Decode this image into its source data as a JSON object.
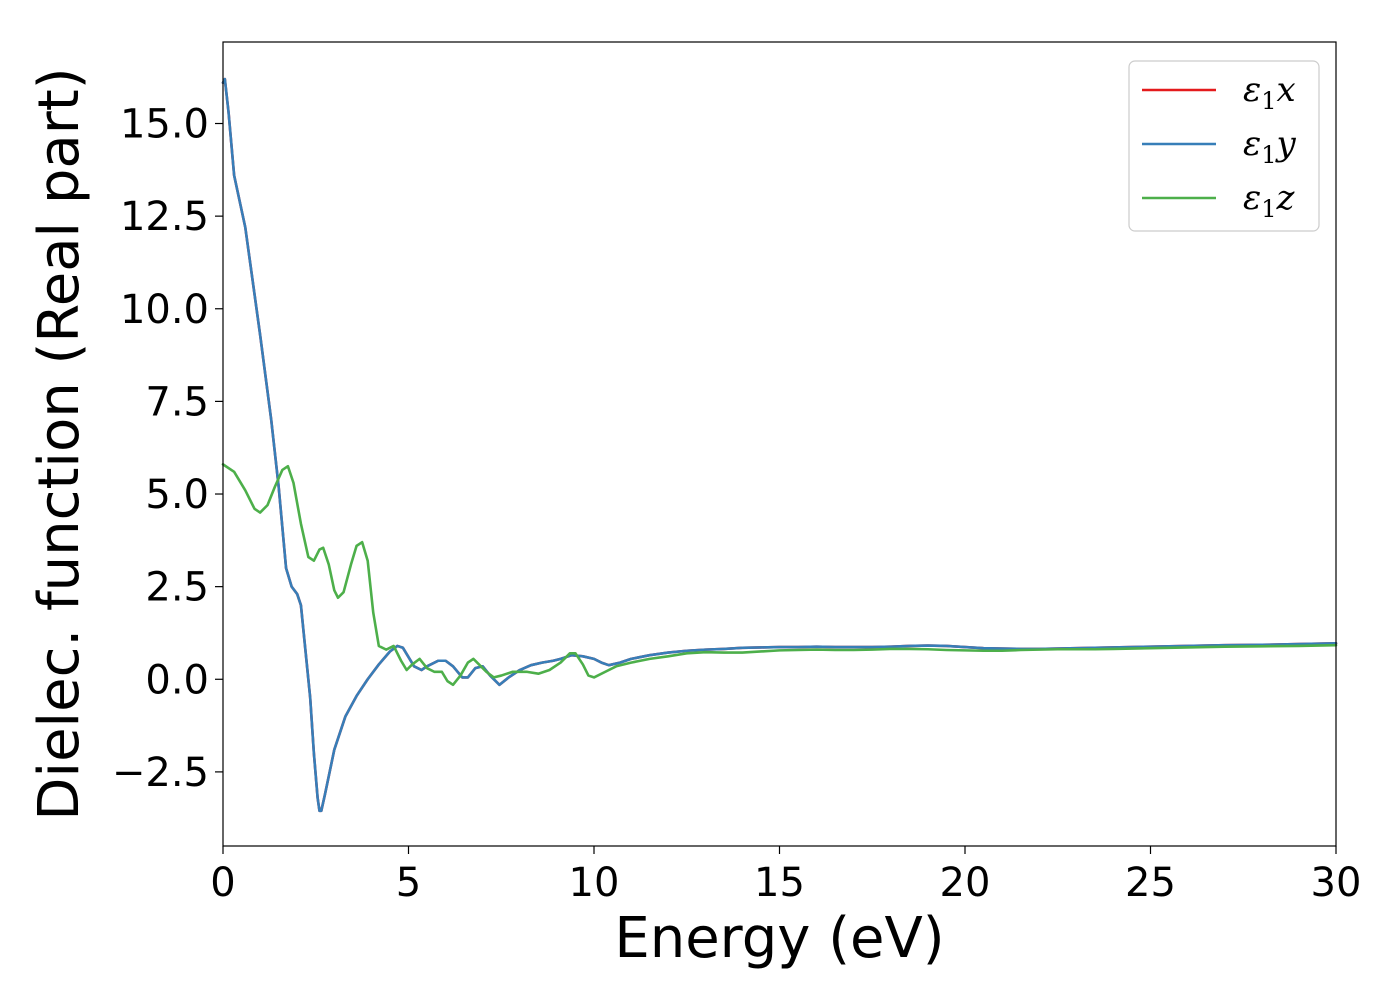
{
  "chart_data": {
    "type": "line",
    "title": "",
    "xlabel": "Energy (eV)",
    "ylabel": "Dielec. function (Real part)",
    "xlim": [
      0,
      30
    ],
    "ylim": [
      -4.5,
      17.2
    ],
    "xticks": [
      0,
      5,
      10,
      15,
      20,
      25,
      30
    ],
    "xtick_labels": [
      "0",
      "5",
      "10",
      "15",
      "20",
      "25",
      "30"
    ],
    "yticks": [
      -2.5,
      0.0,
      2.5,
      5.0,
      7.5,
      10.0,
      12.5,
      15.0
    ],
    "ytick_labels": [
      "−2.5",
      "0.0",
      "2.5",
      "5.0",
      "7.5",
      "10.0",
      "12.5",
      "15.0"
    ],
    "grid": false,
    "legend": {
      "placement": "top-right",
      "entries": [
        {
          "symbol": "ε",
          "sub": "1",
          "suffix": "x"
        },
        {
          "symbol": "ε",
          "sub": "1",
          "suffix": "y"
        },
        {
          "symbol": "ε",
          "sub": "1",
          "suffix": "z"
        }
      ]
    },
    "series": [
      {
        "name": "ε1x",
        "color": "#e41a1c",
        "points": [
          [
            0,
            16.1
          ],
          [
            0.05,
            16.2
          ],
          [
            0.15,
            15.3
          ],
          [
            0.3,
            13.6
          ],
          [
            0.6,
            12.2
          ],
          [
            1.0,
            9.3
          ],
          [
            1.3,
            7.0
          ],
          [
            1.5,
            5.2
          ],
          [
            1.7,
            3.0
          ],
          [
            1.85,
            2.5
          ],
          [
            2.0,
            2.3
          ],
          [
            2.1,
            2.0
          ],
          [
            2.2,
            1.0
          ],
          [
            2.35,
            -0.5
          ],
          [
            2.45,
            -2.0
          ],
          [
            2.55,
            -3.2
          ],
          [
            2.6,
            -3.55
          ],
          [
            2.65,
            -3.55
          ],
          [
            2.75,
            -3.1
          ],
          [
            3.0,
            -1.9
          ],
          [
            3.3,
            -1.0
          ],
          [
            3.6,
            -0.45
          ],
          [
            3.9,
            0.0
          ],
          [
            4.2,
            0.4
          ],
          [
            4.5,
            0.75
          ],
          [
            4.7,
            0.9
          ],
          [
            4.85,
            0.85
          ],
          [
            5.0,
            0.6
          ],
          [
            5.15,
            0.35
          ],
          [
            5.35,
            0.25
          ],
          [
            5.5,
            0.35
          ],
          [
            5.8,
            0.5
          ],
          [
            6.0,
            0.5
          ],
          [
            6.2,
            0.35
          ],
          [
            6.45,
            0.05
          ],
          [
            6.6,
            0.05
          ],
          [
            6.8,
            0.3
          ],
          [
            7.0,
            0.35
          ],
          [
            7.2,
            0.1
          ],
          [
            7.45,
            -0.15
          ],
          [
            7.7,
            0.05
          ],
          [
            8.0,
            0.25
          ],
          [
            8.3,
            0.38
          ],
          [
            8.6,
            0.45
          ],
          [
            8.9,
            0.5
          ],
          [
            9.1,
            0.55
          ],
          [
            9.4,
            0.65
          ],
          [
            9.7,
            0.62
          ],
          [
            10.0,
            0.55
          ],
          [
            10.2,
            0.45
          ],
          [
            10.4,
            0.38
          ],
          [
            10.7,
            0.45
          ],
          [
            11.0,
            0.55
          ],
          [
            11.5,
            0.65
          ],
          [
            12.0,
            0.72
          ],
          [
            12.5,
            0.77
          ],
          [
            13.0,
            0.8
          ],
          [
            13.5,
            0.82
          ],
          [
            14.0,
            0.85
          ],
          [
            14.5,
            0.86
          ],
          [
            15.0,
            0.87
          ],
          [
            15.5,
            0.87
          ],
          [
            16.0,
            0.88
          ],
          [
            16.5,
            0.87
          ],
          [
            17.0,
            0.87
          ],
          [
            17.5,
            0.87
          ],
          [
            18.0,
            0.88
          ],
          [
            18.5,
            0.9
          ],
          [
            19.0,
            0.91
          ],
          [
            19.5,
            0.9
          ],
          [
            20.0,
            0.87
          ],
          [
            20.5,
            0.84
          ],
          [
            21.0,
            0.83
          ],
          [
            21.5,
            0.82
          ],
          [
            22.0,
            0.82
          ],
          [
            22.5,
            0.83
          ],
          [
            23.0,
            0.84
          ],
          [
            23.5,
            0.85
          ],
          [
            24.0,
            0.86
          ],
          [
            24.5,
            0.87
          ],
          [
            25.0,
            0.88
          ],
          [
            26.0,
            0.9
          ],
          [
            27.0,
            0.92
          ],
          [
            28.0,
            0.93
          ],
          [
            29.0,
            0.95
          ],
          [
            30.0,
            0.97
          ]
        ]
      },
      {
        "name": "ε1y",
        "color": "#377eb8",
        "points": [
          [
            0,
            16.1
          ],
          [
            0.05,
            16.2
          ],
          [
            0.15,
            15.3
          ],
          [
            0.3,
            13.6
          ],
          [
            0.6,
            12.2
          ],
          [
            1.0,
            9.3
          ],
          [
            1.3,
            7.0
          ],
          [
            1.5,
            5.2
          ],
          [
            1.7,
            3.0
          ],
          [
            1.85,
            2.5
          ],
          [
            2.0,
            2.3
          ],
          [
            2.1,
            2.0
          ],
          [
            2.2,
            1.0
          ],
          [
            2.35,
            -0.5
          ],
          [
            2.45,
            -2.0
          ],
          [
            2.55,
            -3.2
          ],
          [
            2.6,
            -3.55
          ],
          [
            2.65,
            -3.55
          ],
          [
            2.75,
            -3.1
          ],
          [
            3.0,
            -1.9
          ],
          [
            3.3,
            -1.0
          ],
          [
            3.6,
            -0.45
          ],
          [
            3.9,
            0.0
          ],
          [
            4.2,
            0.4
          ],
          [
            4.5,
            0.75
          ],
          [
            4.7,
            0.9
          ],
          [
            4.85,
            0.85
          ],
          [
            5.0,
            0.6
          ],
          [
            5.15,
            0.35
          ],
          [
            5.35,
            0.25
          ],
          [
            5.5,
            0.35
          ],
          [
            5.8,
            0.5
          ],
          [
            6.0,
            0.5
          ],
          [
            6.2,
            0.35
          ],
          [
            6.45,
            0.05
          ],
          [
            6.6,
            0.05
          ],
          [
            6.8,
            0.3
          ],
          [
            7.0,
            0.35
          ],
          [
            7.2,
            0.1
          ],
          [
            7.45,
            -0.15
          ],
          [
            7.7,
            0.05
          ],
          [
            8.0,
            0.25
          ],
          [
            8.3,
            0.38
          ],
          [
            8.6,
            0.45
          ],
          [
            8.9,
            0.5
          ],
          [
            9.1,
            0.55
          ],
          [
            9.4,
            0.65
          ],
          [
            9.7,
            0.62
          ],
          [
            10.0,
            0.55
          ],
          [
            10.2,
            0.45
          ],
          [
            10.4,
            0.38
          ],
          [
            10.7,
            0.45
          ],
          [
            11.0,
            0.55
          ],
          [
            11.5,
            0.65
          ],
          [
            12.0,
            0.72
          ],
          [
            12.5,
            0.77
          ],
          [
            13.0,
            0.8
          ],
          [
            13.5,
            0.82
          ],
          [
            14.0,
            0.85
          ],
          [
            14.5,
            0.86
          ],
          [
            15.0,
            0.87
          ],
          [
            15.5,
            0.87
          ],
          [
            16.0,
            0.88
          ],
          [
            16.5,
            0.87
          ],
          [
            17.0,
            0.87
          ],
          [
            17.5,
            0.87
          ],
          [
            18.0,
            0.88
          ],
          [
            18.5,
            0.9
          ],
          [
            19.0,
            0.91
          ],
          [
            19.5,
            0.9
          ],
          [
            20.0,
            0.87
          ],
          [
            20.5,
            0.84
          ],
          [
            21.0,
            0.83
          ],
          [
            21.5,
            0.82
          ],
          [
            22.0,
            0.82
          ],
          [
            22.5,
            0.83
          ],
          [
            23.0,
            0.84
          ],
          [
            23.5,
            0.85
          ],
          [
            24.0,
            0.86
          ],
          [
            24.5,
            0.87
          ],
          [
            25.0,
            0.88
          ],
          [
            26.0,
            0.9
          ],
          [
            27.0,
            0.92
          ],
          [
            28.0,
            0.93
          ],
          [
            29.0,
            0.95
          ],
          [
            30.0,
            0.97
          ]
        ]
      },
      {
        "name": "ε1z",
        "color": "#4daf4a",
        "points": [
          [
            0,
            5.8
          ],
          [
            0.3,
            5.6
          ],
          [
            0.6,
            5.1
          ],
          [
            0.85,
            4.6
          ],
          [
            1.0,
            4.5
          ],
          [
            1.2,
            4.7
          ],
          [
            1.4,
            5.2
          ],
          [
            1.6,
            5.65
          ],
          [
            1.75,
            5.75
          ],
          [
            1.9,
            5.3
          ],
          [
            2.1,
            4.2
          ],
          [
            2.3,
            3.3
          ],
          [
            2.45,
            3.2
          ],
          [
            2.6,
            3.5
          ],
          [
            2.7,
            3.55
          ],
          [
            2.85,
            3.1
          ],
          [
            3.0,
            2.4
          ],
          [
            3.1,
            2.2
          ],
          [
            3.25,
            2.35
          ],
          [
            3.45,
            3.1
          ],
          [
            3.6,
            3.6
          ],
          [
            3.75,
            3.7
          ],
          [
            3.9,
            3.2
          ],
          [
            4.05,
            1.8
          ],
          [
            4.2,
            0.9
          ],
          [
            4.4,
            0.8
          ],
          [
            4.6,
            0.9
          ],
          [
            4.8,
            0.5
          ],
          [
            4.95,
            0.25
          ],
          [
            5.1,
            0.4
          ],
          [
            5.3,
            0.55
          ],
          [
            5.5,
            0.3
          ],
          [
            5.7,
            0.2
          ],
          [
            5.9,
            0.2
          ],
          [
            6.05,
            -0.05
          ],
          [
            6.2,
            -0.15
          ],
          [
            6.4,
            0.1
          ],
          [
            6.6,
            0.45
          ],
          [
            6.75,
            0.55
          ],
          [
            6.9,
            0.4
          ],
          [
            7.1,
            0.2
          ],
          [
            7.3,
            0.05
          ],
          [
            7.5,
            0.1
          ],
          [
            7.8,
            0.2
          ],
          [
            8.2,
            0.2
          ],
          [
            8.5,
            0.15
          ],
          [
            8.8,
            0.25
          ],
          [
            9.1,
            0.45
          ],
          [
            9.35,
            0.7
          ],
          [
            9.5,
            0.7
          ],
          [
            9.7,
            0.4
          ],
          [
            9.85,
            0.1
          ],
          [
            10.0,
            0.05
          ],
          [
            10.3,
            0.2
          ],
          [
            10.6,
            0.35
          ],
          [
            11.0,
            0.45
          ],
          [
            11.5,
            0.55
          ],
          [
            12.0,
            0.62
          ],
          [
            12.5,
            0.7
          ],
          [
            13.0,
            0.73
          ],
          [
            13.5,
            0.72
          ],
          [
            14.0,
            0.72
          ],
          [
            14.5,
            0.75
          ],
          [
            15.0,
            0.78
          ],
          [
            15.5,
            0.79
          ],
          [
            16.0,
            0.8
          ],
          [
            16.5,
            0.79
          ],
          [
            17.0,
            0.79
          ],
          [
            17.5,
            0.8
          ],
          [
            18.0,
            0.82
          ],
          [
            18.5,
            0.82
          ],
          [
            19.0,
            0.81
          ],
          [
            19.5,
            0.79
          ],
          [
            20.0,
            0.78
          ],
          [
            20.5,
            0.77
          ],
          [
            21.0,
            0.77
          ],
          [
            21.5,
            0.79
          ],
          [
            22.0,
            0.8
          ],
          [
            22.5,
            0.81
          ],
          [
            23.0,
            0.81
          ],
          [
            23.5,
            0.81
          ],
          [
            24.0,
            0.82
          ],
          [
            24.5,
            0.83
          ],
          [
            25.0,
            0.84
          ],
          [
            26.0,
            0.86
          ],
          [
            27.0,
            0.88
          ],
          [
            28.0,
            0.89
          ],
          [
            29.0,
            0.9
          ],
          [
            30.0,
            0.92
          ]
        ]
      }
    ]
  }
}
